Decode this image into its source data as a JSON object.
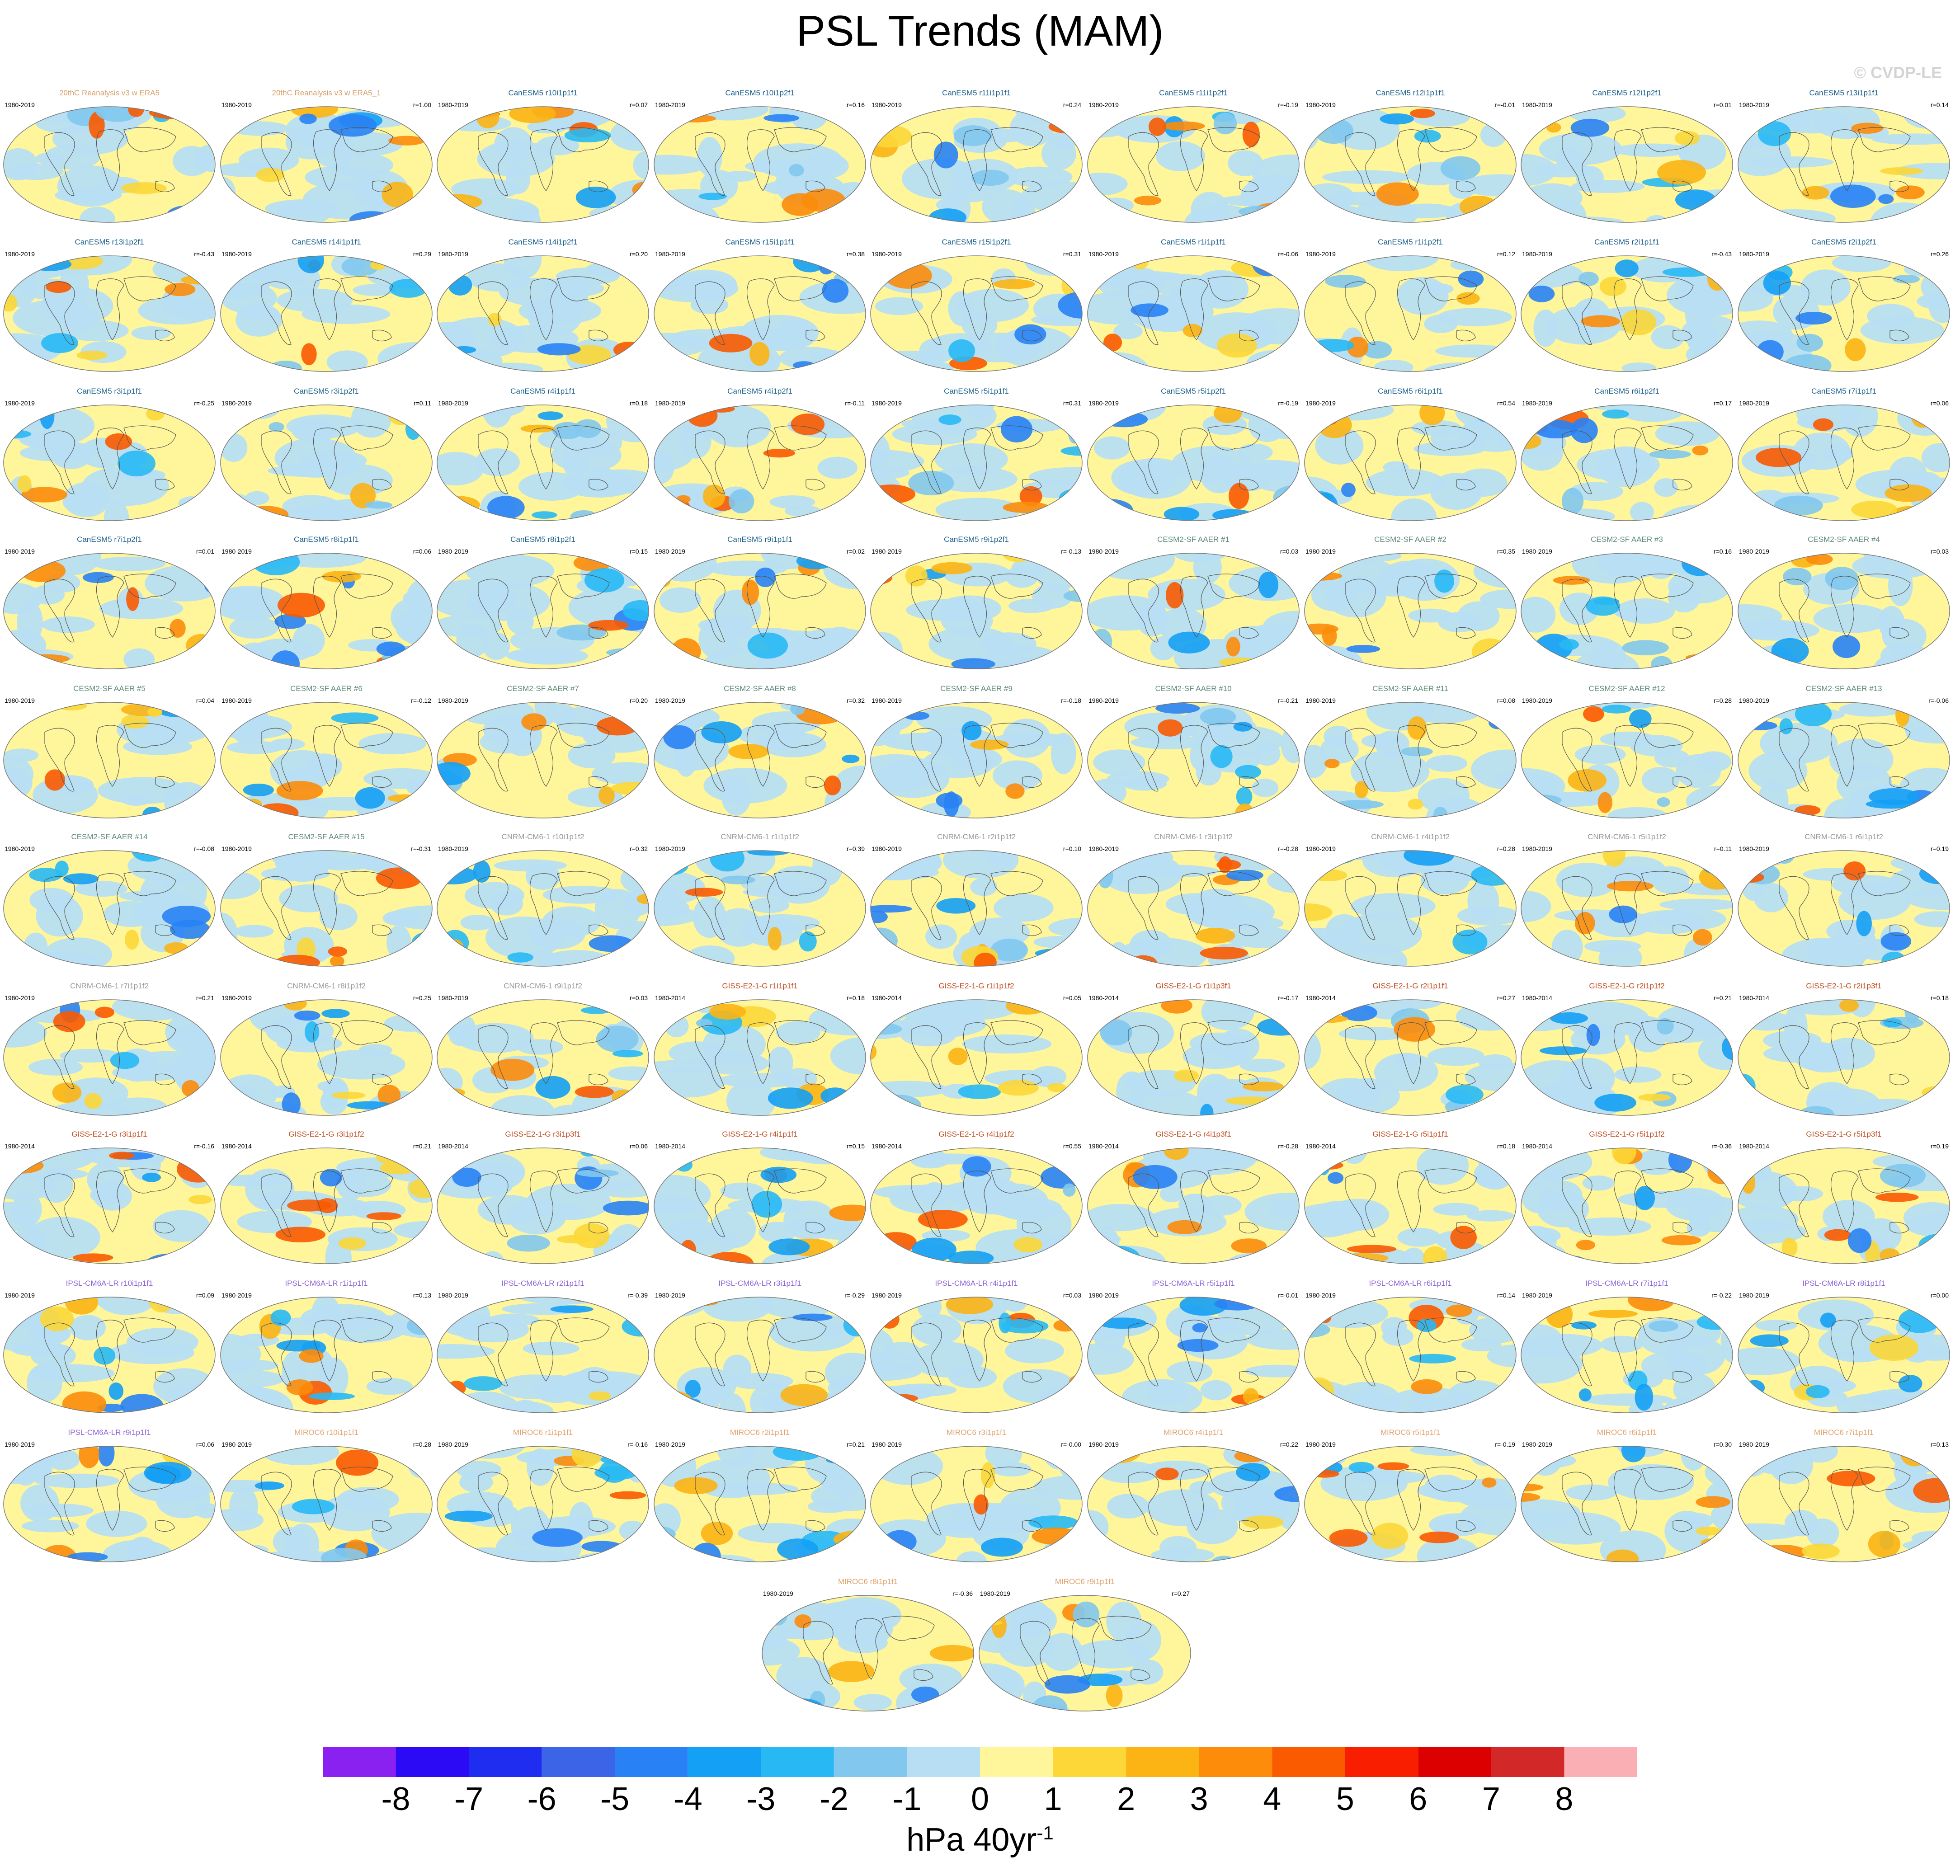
{
  "title": "PSL Trends (MAM)",
  "watermark": "© CVDP-LE",
  "colorbar": {
    "labels": [
      "-8",
      "-7",
      "-6",
      "-5",
      "-4",
      "-3",
      "-2",
      "-1",
      "0",
      "1",
      "2",
      "3",
      "4",
      "5",
      "6",
      "7",
      "8"
    ],
    "colors": [
      "#8b21f0",
      "#2d0af5",
      "#1e2df0",
      "#3c64e6",
      "#2882f5",
      "#14a0f5",
      "#28b9f5",
      "#82c8ee",
      "#b7def2",
      "#fff59a",
      "#fcd737",
      "#fcb414",
      "#fc8c0a",
      "#fa5a00",
      "#fa1e00",
      "#dc0000",
      "#d22828",
      "#faafb4"
    ],
    "units": "hPa 40yr",
    "units_superscript": "-1"
  },
  "title_colors": {
    "obs": "#d6a16b",
    "CanESM5": "#1a5f8c",
    "CESM2": "#5e8a78",
    "CNRM": "#999999",
    "GISS": "#c04a1e",
    "IPSL": "#8c62d6",
    "MIROC": "#e0a26e"
  },
  "chart_data": {
    "type": "map",
    "panels": [
      {
        "title": "20thC Reanalysis v3 w ERA5",
        "years": "1980-2019",
        "r": "",
        "group": "obs"
      },
      {
        "title": "20thC Reanalysis v3 w ERA5_1",
        "years": "1980-2019",
        "r": "r=1.00",
        "group": "obs"
      },
      {
        "title": "CanESM5 r10i1p1f1",
        "years": "1980-2019",
        "r": "r=0.07",
        "group": "CanESM5"
      },
      {
        "title": "CanESM5 r10i1p2f1",
        "years": "1980-2019",
        "r": "r=0.16",
        "group": "CanESM5"
      },
      {
        "title": "CanESM5 r11i1p1f1",
        "years": "1980-2019",
        "r": "r=0.24",
        "group": "CanESM5"
      },
      {
        "title": "CanESM5 r11i1p2f1",
        "years": "1980-2019",
        "r": "r=-0.19",
        "group": "CanESM5"
      },
      {
        "title": "CanESM5 r12i1p1f1",
        "years": "1980-2019",
        "r": "r=-0.01",
        "group": "CanESM5"
      },
      {
        "title": "CanESM5 r12i1p2f1",
        "years": "1980-2019",
        "r": "r=0.01",
        "group": "CanESM5"
      },
      {
        "title": "CanESM5 r13i1p1f1",
        "years": "1980-2019",
        "r": "r=0.14",
        "group": "CanESM5"
      },
      {
        "title": "CanESM5 r13i1p2f1",
        "years": "1980-2019",
        "r": "r=-0.43",
        "group": "CanESM5"
      },
      {
        "title": "CanESM5 r14i1p1f1",
        "years": "1980-2019",
        "r": "r=0.29",
        "group": "CanESM5"
      },
      {
        "title": "CanESM5 r14i1p2f1",
        "years": "1980-2019",
        "r": "r=0.20",
        "group": "CanESM5"
      },
      {
        "title": "CanESM5 r15i1p1f1",
        "years": "1980-2019",
        "r": "r=0.38",
        "group": "CanESM5"
      },
      {
        "title": "CanESM5 r15i1p2f1",
        "years": "1980-2019",
        "r": "r=0.31",
        "group": "CanESM5"
      },
      {
        "title": "CanESM5 r1i1p1f1",
        "years": "1980-2019",
        "r": "r=-0.06",
        "group": "CanESM5"
      },
      {
        "title": "CanESM5 r1i1p2f1",
        "years": "1980-2019",
        "r": "r=0.12",
        "group": "CanESM5"
      },
      {
        "title": "CanESM5 r2i1p1f1",
        "years": "1980-2019",
        "r": "r=-0.43",
        "group": "CanESM5"
      },
      {
        "title": "CanESM5 r2i1p2f1",
        "years": "1980-2019",
        "r": "r=0.26",
        "group": "CanESM5"
      },
      {
        "title": "CanESM5 r3i1p1f1",
        "years": "1980-2019",
        "r": "r=-0.25",
        "group": "CanESM5"
      },
      {
        "title": "CanESM5 r3i1p2f1",
        "years": "1980-2019",
        "r": "r=0.11",
        "group": "CanESM5"
      },
      {
        "title": "CanESM5 r4i1p1f1",
        "years": "1980-2019",
        "r": "r=0.18",
        "group": "CanESM5"
      },
      {
        "title": "CanESM5 r4i1p2f1",
        "years": "1980-2019",
        "r": "r=-0.11",
        "group": "CanESM5"
      },
      {
        "title": "CanESM5 r5i1p1f1",
        "years": "1980-2019",
        "r": "r=0.31",
        "group": "CanESM5"
      },
      {
        "title": "CanESM5 r5i1p2f1",
        "years": "1980-2019",
        "r": "r=-0.19",
        "group": "CanESM5"
      },
      {
        "title": "CanESM5 r6i1p1f1",
        "years": "1980-2019",
        "r": "r=0.54",
        "group": "CanESM5"
      },
      {
        "title": "CanESM5 r6i1p2f1",
        "years": "1980-2019",
        "r": "r=0.17",
        "group": "CanESM5"
      },
      {
        "title": "CanESM5 r7i1p1f1",
        "years": "1980-2019",
        "r": "r=0.06",
        "group": "CanESM5"
      },
      {
        "title": "CanESM5 r7i1p2f1",
        "years": "1980-2019",
        "r": "r=0.01",
        "group": "CanESM5"
      },
      {
        "title": "CanESM5 r8i1p1f1",
        "years": "1980-2019",
        "r": "r=0.06",
        "group": "CanESM5"
      },
      {
        "title": "CanESM5 r8i1p2f1",
        "years": "1980-2019",
        "r": "r=0.15",
        "group": "CanESM5"
      },
      {
        "title": "CanESM5 r9i1p1f1",
        "years": "1980-2019",
        "r": "r=0.02",
        "group": "CanESM5"
      },
      {
        "title": "CanESM5 r9i1p2f1",
        "years": "1980-2019",
        "r": "r=-0.13",
        "group": "CanESM5"
      },
      {
        "title": "CESM2-SF AAER #1",
        "years": "1980-2019",
        "r": "r=0.03",
        "group": "CESM2"
      },
      {
        "title": "CESM2-SF AAER #2",
        "years": "1980-2019",
        "r": "r=0.35",
        "group": "CESM2"
      },
      {
        "title": "CESM2-SF AAER #3",
        "years": "1980-2019",
        "r": "r=0.16",
        "group": "CESM2"
      },
      {
        "title": "CESM2-SF AAER #4",
        "years": "1980-2019",
        "r": "r=0.03",
        "group": "CESM2"
      },
      {
        "title": "CESM2-SF AAER #5",
        "years": "1980-2019",
        "r": "r=0.04",
        "group": "CESM2"
      },
      {
        "title": "CESM2-SF AAER #6",
        "years": "1980-2019",
        "r": "r=-0.12",
        "group": "CESM2"
      },
      {
        "title": "CESM2-SF AAER #7",
        "years": "1980-2019",
        "r": "r=0.20",
        "group": "CESM2"
      },
      {
        "title": "CESM2-SF AAER #8",
        "years": "1980-2019",
        "r": "r=0.32",
        "group": "CESM2"
      },
      {
        "title": "CESM2-SF AAER #9",
        "years": "1980-2019",
        "r": "r=-0.18",
        "group": "CESM2"
      },
      {
        "title": "CESM2-SF AAER #10",
        "years": "1980-2019",
        "r": "r=-0.21",
        "group": "CESM2"
      },
      {
        "title": "CESM2-SF AAER #11",
        "years": "1980-2019",
        "r": "r=0.08",
        "group": "CESM2"
      },
      {
        "title": "CESM2-SF AAER #12",
        "years": "1980-2019",
        "r": "r=0.28",
        "group": "CESM2"
      },
      {
        "title": "CESM2-SF AAER #13",
        "years": "1980-2019",
        "r": "r=-0.06",
        "group": "CESM2"
      },
      {
        "title": "CESM2-SF AAER #14",
        "years": "1980-2019",
        "r": "r=-0.08",
        "group": "CESM2"
      },
      {
        "title": "CESM2-SF AAER #15",
        "years": "1980-2019",
        "r": "r=-0.31",
        "group": "CESM2"
      },
      {
        "title": "CNRM-CM6-1 r10i1p1f2",
        "years": "1980-2019",
        "r": "r=0.32",
        "group": "CNRM"
      },
      {
        "title": "CNRM-CM6-1 r1i1p1f2",
        "years": "1980-2019",
        "r": "r=0.39",
        "group": "CNRM"
      },
      {
        "title": "CNRM-CM6-1 r2i1p1f2",
        "years": "1980-2019",
        "r": "r=0.10",
        "group": "CNRM"
      },
      {
        "title": "CNRM-CM6-1 r3i1p1f2",
        "years": "1980-2019",
        "r": "r=-0.28",
        "group": "CNRM"
      },
      {
        "title": "CNRM-CM6-1 r4i1p1f2",
        "years": "1980-2019",
        "r": "r=0.28",
        "group": "CNRM"
      },
      {
        "title": "CNRM-CM6-1 r5i1p1f2",
        "years": "1980-2019",
        "r": "r=0.11",
        "group": "CNRM"
      },
      {
        "title": "CNRM-CM6-1 r6i1p1f2",
        "years": "1980-2019",
        "r": "r=0.19",
        "group": "CNRM"
      },
      {
        "title": "CNRM-CM6-1 r7i1p1f2",
        "years": "1980-2019",
        "r": "r=0.21",
        "group": "CNRM"
      },
      {
        "title": "CNRM-CM6-1 r8i1p1f2",
        "years": "1980-2019",
        "r": "r=0.25",
        "group": "CNRM"
      },
      {
        "title": "CNRM-CM6-1 r9i1p1f2",
        "years": "1980-2019",
        "r": "r=0.03",
        "group": "CNRM"
      },
      {
        "title": "GISS-E2-1-G r1i1p1f1",
        "years": "1980-2014",
        "r": "r=0.18",
        "group": "GISS"
      },
      {
        "title": "GISS-E2-1-G r1i1p1f2",
        "years": "1980-2014",
        "r": "r=0.05",
        "group": "GISS"
      },
      {
        "title": "GISS-E2-1-G r1i1p3f1",
        "years": "1980-2014",
        "r": "r=-0.17",
        "group": "GISS"
      },
      {
        "title": "GISS-E2-1-G r2i1p1f1",
        "years": "1980-2014",
        "r": "r=0.27",
        "group": "GISS"
      },
      {
        "title": "GISS-E2-1-G r2i1p1f2",
        "years": "1980-2014",
        "r": "r=0.21",
        "group": "GISS"
      },
      {
        "title": "GISS-E2-1-G r2i1p3f1",
        "years": "1980-2014",
        "r": "r=0.18",
        "group": "GISS"
      },
      {
        "title": "GISS-E2-1-G r3i1p1f1",
        "years": "1980-2014",
        "r": "r=-0.16",
        "group": "GISS"
      },
      {
        "title": "GISS-E2-1-G r3i1p1f2",
        "years": "1980-2014",
        "r": "r=0.21",
        "group": "GISS"
      },
      {
        "title": "GISS-E2-1-G r3i1p3f1",
        "years": "1980-2014",
        "r": "r=0.06",
        "group": "GISS"
      },
      {
        "title": "GISS-E2-1-G r4i1p1f1",
        "years": "1980-2014",
        "r": "r=0.15",
        "group": "GISS"
      },
      {
        "title": "GISS-E2-1-G r4i1p1f2",
        "years": "1980-2014",
        "r": "r=0.55",
        "group": "GISS"
      },
      {
        "title": "GISS-E2-1-G r4i1p3f1",
        "years": "1980-2014",
        "r": "r=-0.28",
        "group": "GISS"
      },
      {
        "title": "GISS-E2-1-G r5i1p1f1",
        "years": "1980-2014",
        "r": "r=0.18",
        "group": "GISS"
      },
      {
        "title": "GISS-E2-1-G r5i1p1f2",
        "years": "1980-2014",
        "r": "r=-0.36",
        "group": "GISS"
      },
      {
        "title": "GISS-E2-1-G r5i1p3f1",
        "years": "1980-2014",
        "r": "r=0.19",
        "group": "GISS"
      },
      {
        "title": "IPSL-CM6A-LR r10i1p1f1",
        "years": "1980-2019",
        "r": "r=0.09",
        "group": "IPSL"
      },
      {
        "title": "IPSL-CM6A-LR r1i1p1f1",
        "years": "1980-2019",
        "r": "r=0.13",
        "group": "IPSL"
      },
      {
        "title": "IPSL-CM6A-LR r2i1p1f1",
        "years": "1980-2019",
        "r": "r=-0.39",
        "group": "IPSL"
      },
      {
        "title": "IPSL-CM6A-LR r3i1p1f1",
        "years": "1980-2019",
        "r": "r=-0.29",
        "group": "IPSL"
      },
      {
        "title": "IPSL-CM6A-LR r4i1p1f1",
        "years": "1980-2019",
        "r": "r=0.03",
        "group": "IPSL"
      },
      {
        "title": "IPSL-CM6A-LR r5i1p1f1",
        "years": "1980-2019",
        "r": "r=-0.01",
        "group": "IPSL"
      },
      {
        "title": "IPSL-CM6A-LR r6i1p1f1",
        "years": "1980-2019",
        "r": "r=0.14",
        "group": "IPSL"
      },
      {
        "title": "IPSL-CM6A-LR r7i1p1f1",
        "years": "1980-2019",
        "r": "r=-0.22",
        "group": "IPSL"
      },
      {
        "title": "IPSL-CM6A-LR r8i1p1f1",
        "years": "1980-2019",
        "r": "r=0.00",
        "group": "IPSL"
      },
      {
        "title": "IPSL-CM6A-LR r9i1p1f1",
        "years": "1980-2019",
        "r": "r=0.06",
        "group": "IPSL"
      },
      {
        "title": "MIROC6 r10i1p1f1",
        "years": "1980-2019",
        "r": "r=0.28",
        "group": "MIROC"
      },
      {
        "title": "MIROC6 r1i1p1f1",
        "years": "1980-2019",
        "r": "r=-0.16",
        "group": "MIROC"
      },
      {
        "title": "MIROC6 r2i1p1f1",
        "years": "1980-2019",
        "r": "r=0.21",
        "group": "MIROC"
      },
      {
        "title": "MIROC6 r3i1p1f1",
        "years": "1980-2019",
        "r": "r=-0.00",
        "group": "MIROC"
      },
      {
        "title": "MIROC6 r4i1p1f1",
        "years": "1980-2019",
        "r": "r=0.22",
        "group": "MIROC"
      },
      {
        "title": "MIROC6 r5i1p1f1",
        "years": "1980-2019",
        "r": "r=-0.19",
        "group": "MIROC"
      },
      {
        "title": "MIROC6 r6i1p1f1",
        "years": "1980-2019",
        "r": "r=0.30",
        "group": "MIROC"
      },
      {
        "title": "MIROC6 r7i1p1f1",
        "years": "1980-2019",
        "r": "r=0.13",
        "group": "MIROC"
      },
      {
        "title": "MIROC6 r8i1p1f1",
        "years": "1980-2019",
        "r": "r=-0.36",
        "group": "MIROC"
      },
      {
        "title": "MIROC6 r9i1p1f1",
        "years": "1980-2019",
        "r": "r=0.27",
        "group": "MIROC"
      }
    ]
  }
}
